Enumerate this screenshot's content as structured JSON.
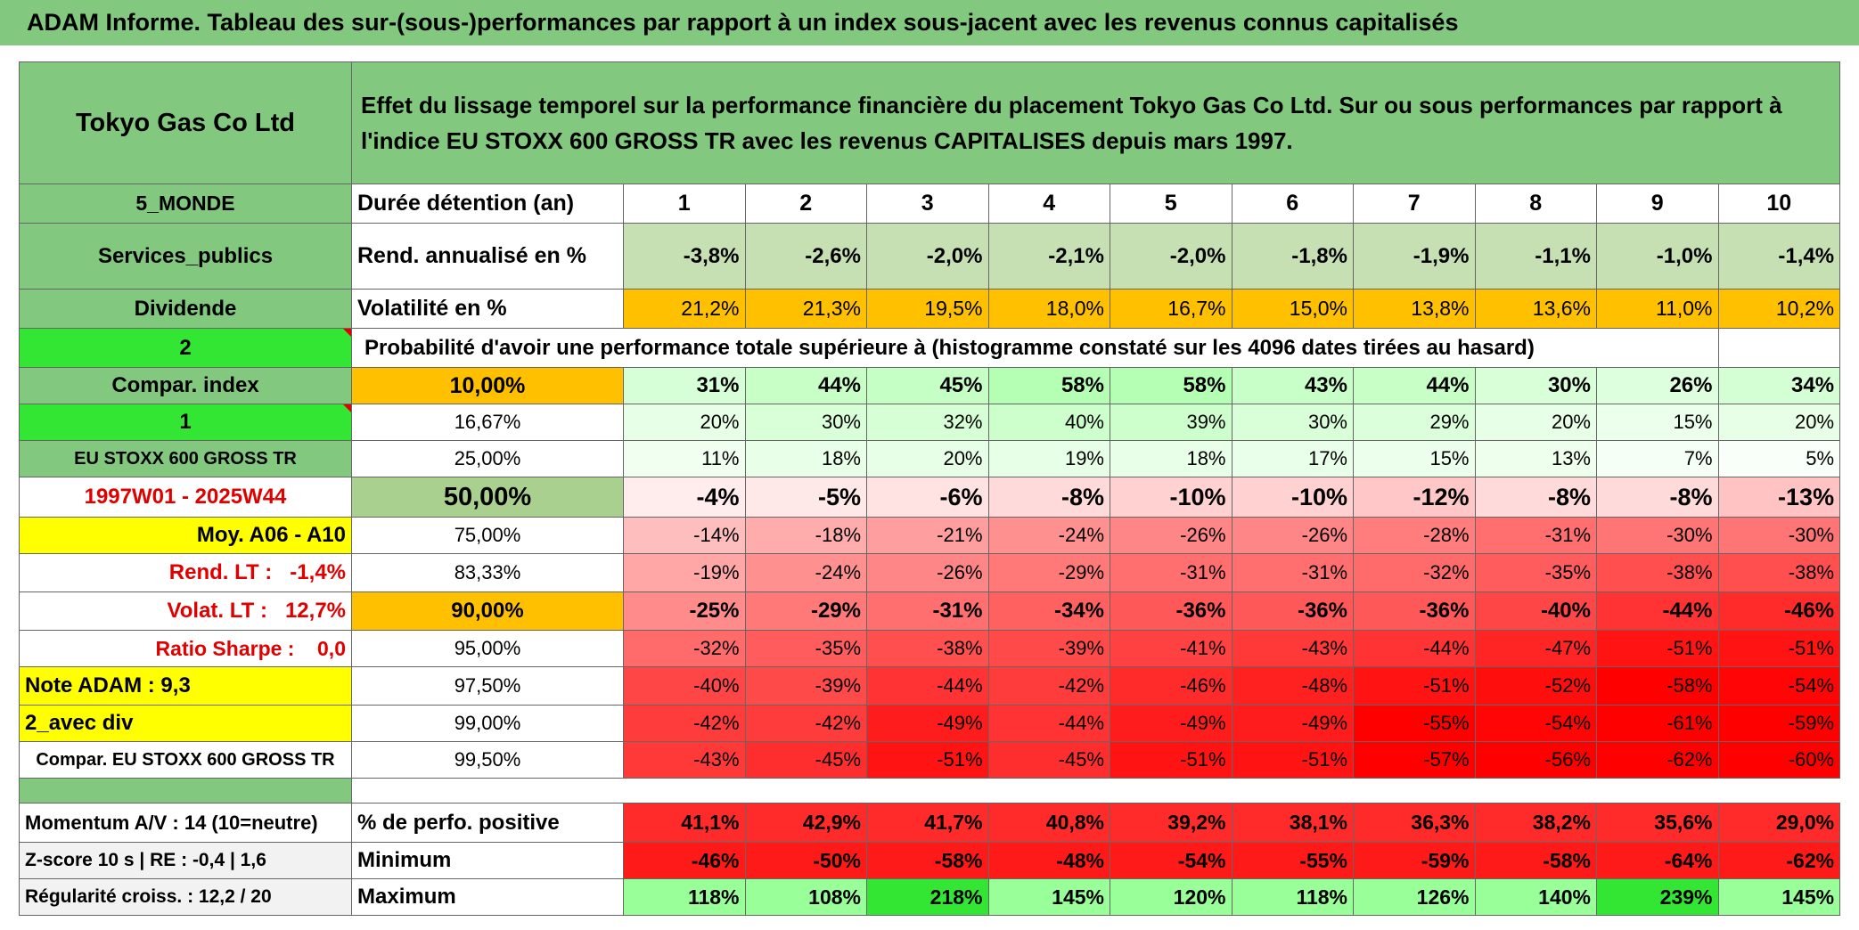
{
  "header": {
    "title": "ADAM Informe. Tableau des sur-(sous-)performances par rapport à un index sous-jacent avec les revenus connus capitalisés"
  },
  "table": {
    "company": "Tokyo Gas Co Ltd",
    "description": "Effet du lissage temporel sur la performance financière du placement Tokyo Gas Co Ltd. Sur ou sous performances par rapport à l'indice EU STOXX 600 GROSS TR avec les revenus CAPITALISES depuis mars 1997.",
    "rows": [
      [
        "5_MONDE",
        "Durée détention (an)",
        "1",
        "2",
        "3",
        "4",
        "5",
        "6",
        "7",
        "8",
        "9",
        "10"
      ],
      [
        "Services_publics",
        "Rend. annualisé en %",
        "-3,8%",
        "-2,6%",
        "-2,0%",
        "-2,1%",
        "-2,0%",
        "-1,8%",
        "-1,9%",
        "-1,1%",
        "-1,0%",
        "-1,4%"
      ],
      [
        "Dividende",
        "Volatilité en %",
        "21,2%",
        "21,3%",
        "19,5%",
        "18,0%",
        "16,7%",
        "15,0%",
        "13,8%",
        "13,6%",
        "11,0%",
        "10,2%"
      ],
      [
        "2",
        "Probabilité d'avoir une performance totale supérieure à (histogramme constaté sur les 4096 dates tirées au hasard)"
      ],
      [
        "Compar. index",
        "10,00%",
        "31%",
        "44%",
        "45%",
        "58%",
        "58%",
        "43%",
        "44%",
        "30%",
        "26%",
        "34%"
      ],
      [
        "1",
        "16,67%",
        "20%",
        "30%",
        "32%",
        "40%",
        "39%",
        "30%",
        "29%",
        "20%",
        "15%",
        "20%"
      ],
      [
        "EU STOXX 600 GROSS TR",
        "25,00%",
        "11%",
        "18%",
        "20%",
        "19%",
        "18%",
        "17%",
        "15%",
        "13%",
        "7%",
        "5%"
      ],
      [
        "1997W01 - 2025W44",
        "50,00%",
        "-4%",
        "-5%",
        "-6%",
        "-8%",
        "-10%",
        "-10%",
        "-12%",
        "-8%",
        "-8%",
        "-13%"
      ],
      [
        "Moy. A06 - A10",
        "75,00%",
        "-14%",
        "-18%",
        "-21%",
        "-24%",
        "-26%",
        "-26%",
        "-28%",
        "-31%",
        "-30%",
        "-30%"
      ],
      [
        "Rend. LT :   -1,4%",
        "83,33%",
        "-19%",
        "-24%",
        "-26%",
        "-29%",
        "-31%",
        "-31%",
        "-32%",
        "-35%",
        "-38%",
        "-38%"
      ],
      [
        "Volat. LT :   12,7%",
        "90,00%",
        "-25%",
        "-29%",
        "-31%",
        "-34%",
        "-36%",
        "-36%",
        "-36%",
        "-40%",
        "-44%",
        "-46%"
      ],
      [
        "Ratio Sharpe :    0,0",
        "95,00%",
        "-32%",
        "-35%",
        "-38%",
        "-39%",
        "-41%",
        "-43%",
        "-44%",
        "-47%",
        "-51%",
        "-51%"
      ],
      [
        "Note ADAM : 9,3",
        "97,50%",
        "-40%",
        "-39%",
        "-44%",
        "-42%",
        "-46%",
        "-48%",
        "-51%",
        "-52%",
        "-58%",
        "-54%"
      ],
      [
        "2_avec div",
        "99,00%",
        "-42%",
        "-42%",
        "-49%",
        "-44%",
        "-49%",
        "-49%",
        "-55%",
        "-54%",
        "-61%",
        "-59%"
      ],
      [
        "Compar. EU STOXX 600 GROSS TR",
        "99,50%",
        "-43%",
        "-45%",
        "-51%",
        "-45%",
        "-51%",
        "-51%",
        "-57%",
        "-56%",
        "-62%",
        "-60%"
      ]
    ],
    "bottom_rows": [
      [
        "Momentum A/V : 14 (10=neutre)",
        "% de perfo. positive",
        "41,1%",
        "42,9%",
        "41,7%",
        "40,8%",
        "39,2%",
        "38,1%",
        "36,3%",
        "38,2%",
        "35,6%",
        "29,0%"
      ],
      [
        "Z-score 10 s | RE : -0,4 | 1,6",
        "Minimum",
        "-46%",
        "-50%",
        "-58%",
        "-48%",
        "-54%",
        "-55%",
        "-59%",
        "-58%",
        "-64%",
        "-62%"
      ],
      [
        "Régularité croiss. : 12,2 / 20",
        "Maximum",
        "118%",
        "108%",
        "218%",
        "145%",
        "120%",
        "118%",
        "126%",
        "140%",
        "239%",
        "145%"
      ]
    ]
  }
}
